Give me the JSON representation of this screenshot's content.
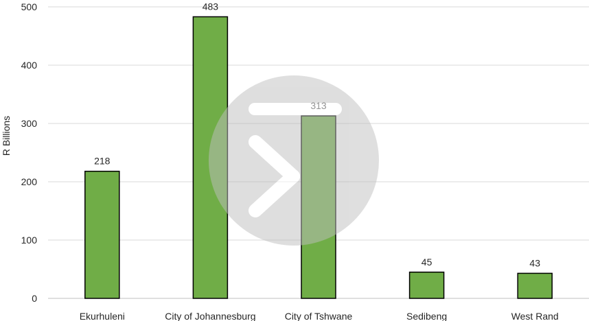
{
  "chart_data": {
    "type": "bar",
    "categories": [
      "Ekurhuleni",
      "City of Johannesburg",
      "City of Tshwane",
      "Sedibeng",
      "West Rand"
    ],
    "values": [
      218,
      483,
      313,
      45,
      43
    ],
    "data_labels": [
      "218",
      "483",
      "313",
      "45",
      "43"
    ],
    "ylabel": "R Billions",
    "xlabel": "",
    "title": "",
    "ylim": [
      0,
      500
    ],
    "yticks": [
      0,
      100,
      200,
      300,
      400,
      500
    ],
    "ytick_labels": [
      "0",
      "100",
      "200",
      "300",
      "400",
      "500"
    ],
    "grid": true,
    "legend": "none",
    "colors": {
      "bar_fill": "#70AD47",
      "bar_stroke": "#000000",
      "grid": "#D9D9D9",
      "watermark": "#BFBFBF"
    }
  }
}
